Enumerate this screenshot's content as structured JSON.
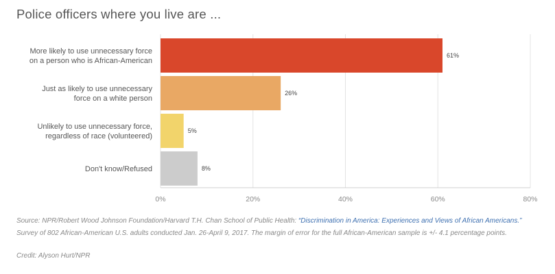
{
  "chart_data": {
    "type": "bar",
    "orientation": "horizontal",
    "title": "Police officers where you live are ...",
    "categories": [
      [
        "More likely to use unnecessary force",
        "on a person who is African-American"
      ],
      [
        "Just as likely to use unnecessary",
        "force on a white person"
      ],
      [
        "Unlikely to use unnecessary force,",
        "regardless of race (volunteered)"
      ],
      [
        "Don't know/Refused"
      ]
    ],
    "values": [
      61,
      26,
      5,
      8
    ],
    "value_labels": [
      "61%",
      "26%",
      "5%",
      "8%"
    ],
    "colors": [
      "#d9472b",
      "#e9a864",
      "#f2d46b",
      "#cccccc"
    ],
    "xlim": [
      0,
      80
    ],
    "xticks": [
      0,
      20,
      40,
      60,
      80
    ],
    "xtick_labels": [
      "0%",
      "20%",
      "40%",
      "60%",
      "80%"
    ],
    "grid": true
  },
  "footer": {
    "source_prefix": "Source: NPR/Robert Wood Johnson Foundation/Harvard T.H. Chan School of Public Health: ",
    "source_link": "“Discrimination in America: Experiences and Views of African Americans.”",
    "source_suffix": " Survey of 802 African-American U.S. adults conducted Jan. 26-April 9, 2017. The margin of error for the full African-American sample is +/- 4.1 percentage points.",
    "credit": "Credit: Alyson Hurt/NPR"
  }
}
